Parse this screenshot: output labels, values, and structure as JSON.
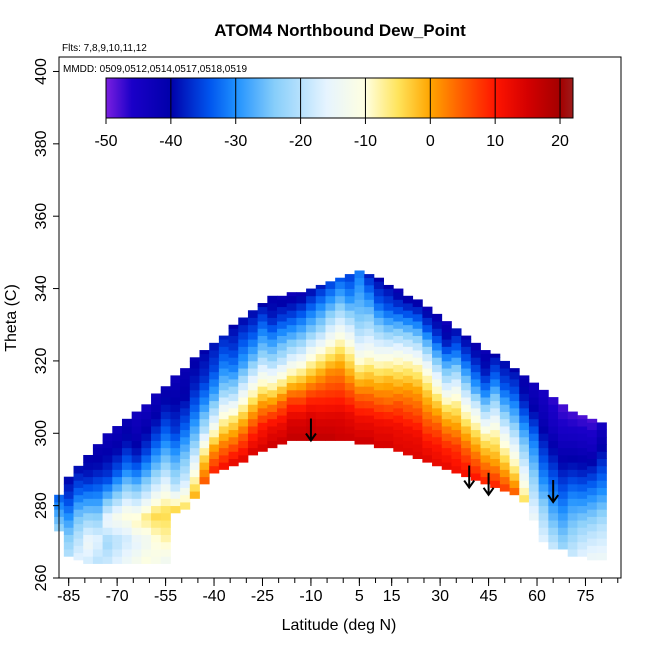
{
  "chart_data": {
    "type": "heatmap",
    "title": "ATOM4 Northbound Dew_Point",
    "flights_text": "Flts: 7,8,9,10,11,12",
    "dates_text": "MMDD: 0509,0512,0514,0517,0518,0519",
    "xlabel": "Latitude (deg N)",
    "ylabel": "Theta (C)",
    "xlim": [
      -88,
      86
    ],
    "ylim": [
      260,
      404
    ],
    "x_ticks": [
      -85,
      -70,
      -55,
      -40,
      -25,
      -10,
      5,
      15,
      30,
      45,
      60,
      75
    ],
    "x_tick_labels": [
      "-85",
      "-70",
      "-55",
      "-40",
      "-25",
      "-10",
      "5",
      "15",
      "30",
      "45",
      "60",
      "75"
    ],
    "y_ticks": [
      260,
      280,
      300,
      320,
      340,
      360,
      380,
      400
    ],
    "y_tick_labels": [
      "260",
      "280",
      "300",
      "320",
      "340",
      "360",
      "380",
      "400"
    ],
    "colorbar": {
      "min": -50,
      "max": 22,
      "ticks": [
        -50,
        -40,
        -30,
        -20,
        -10,
        0,
        10,
        20
      ],
      "tick_labels": [
        "-50",
        "-40",
        "-30",
        "-20",
        "-10",
        "0",
        "10",
        "20"
      ],
      "stops": [
        {
          "value": -50,
          "color": "#7B1FE0"
        },
        {
          "value": -46,
          "color": "#1A00C8"
        },
        {
          "value": -40,
          "color": "#0000AA"
        },
        {
          "value": -34,
          "color": "#0055EE"
        },
        {
          "value": -30,
          "color": "#1E90FF"
        },
        {
          "value": -24,
          "color": "#87CEFA"
        },
        {
          "value": -16,
          "color": "#E6F4FF"
        },
        {
          "value": -10,
          "color": "#FFFFE0"
        },
        {
          "value": -5,
          "color": "#FFE45C"
        },
        {
          "value": 0,
          "color": "#FFA500"
        },
        {
          "value": 5,
          "color": "#FF5A00"
        },
        {
          "value": 10,
          "color": "#FF1500"
        },
        {
          "value": 15,
          "color": "#D40000"
        },
        {
          "value": 20,
          "color": "#A40000"
        },
        {
          "value": 22,
          "color": "#9E1B1B"
        }
      ]
    },
    "field": {
      "lat_step": 3,
      "profiles": [
        {
          "lat": -88,
          "theta_min": 273,
          "theta_max": 283,
          "values": [
            -22,
            -28,
            -34
          ]
        },
        {
          "lat": -85,
          "theta_min": 266,
          "theta_max": 288,
          "values": [
            -20,
            -24,
            -30,
            -36,
            -40
          ]
        },
        {
          "lat": -82,
          "theta_min": 265,
          "theta_max": 291,
          "values": [
            -16,
            -20,
            -26,
            -34,
            -40
          ]
        },
        {
          "lat": -79,
          "theta_min": 264,
          "theta_max": 294,
          "values": [
            -18,
            -14,
            -22,
            -30,
            -38,
            -41
          ]
        },
        {
          "lat": -76,
          "theta_min": 264,
          "theta_max": 297,
          "values": [
            -20,
            -16,
            -24,
            -32,
            -39,
            -42
          ]
        },
        {
          "lat": -73,
          "theta_min": 264,
          "theta_max": 300,
          "values": [
            -18,
            -22,
            -14,
            -26,
            -36,
            -40,
            -43
          ]
        },
        {
          "lat": -70,
          "theta_min": 264,
          "theta_max": 302,
          "values": [
            -16,
            -20,
            -12,
            -24,
            -34,
            -40,
            -43
          ]
        },
        {
          "lat": -67,
          "theta_min": 264,
          "theta_max": 304,
          "values": [
            -14,
            -18,
            -10,
            -22,
            -32,
            -39,
            -42
          ]
        },
        {
          "lat": -64,
          "theta_min": 264,
          "theta_max": 306,
          "values": [
            -12,
            -16,
            -8,
            -20,
            -30,
            -38,
            -42,
            -44
          ]
        },
        {
          "lat": -61,
          "theta_min": 264,
          "theta_max": 308,
          "values": [
            -10,
            -14,
            -6,
            -18,
            -28,
            -36,
            -41,
            -44
          ]
        },
        {
          "lat": -58,
          "theta_min": 264,
          "theta_max": 311,
          "values": [
            -12,
            -10,
            -4,
            -16,
            -26,
            -34,
            -40,
            -43
          ]
        },
        {
          "lat": -55,
          "theta_min": 264,
          "theta_max": 313,
          "values": [
            -14,
            -8,
            -4,
            -14,
            -24,
            -32,
            -38,
            -42
          ]
        },
        {
          "lat": -52,
          "theta_min": 278,
          "theta_max": 316,
          "values": [
            -2,
            -20,
            -28,
            -36,
            -40,
            -43
          ]
        },
        {
          "lat": -49,
          "theta_min": 279,
          "theta_max": 318,
          "values": [
            -4,
            -18,
            -26,
            -34,
            -40,
            -42
          ]
        },
        {
          "lat": -46,
          "theta_min": 282,
          "theta_max": 321,
          "values": [
            0,
            -12,
            -24,
            -32,
            -38,
            -41
          ]
        },
        {
          "lat": -43,
          "theta_min": 286,
          "theta_max": 323,
          "values": [
            6,
            -4,
            -20,
            -30,
            -37,
            -40
          ]
        },
        {
          "lat": -40,
          "theta_min": 289,
          "theta_max": 325,
          "values": [
            10,
            0,
            -16,
            -28,
            -35,
            -39
          ]
        },
        {
          "lat": -37,
          "theta_min": 290,
          "theta_max": 327,
          "values": [
            12,
            2,
            -10,
            -24,
            -32,
            -38
          ]
        },
        {
          "lat": -34,
          "theta_min": 291,
          "theta_max": 330,
          "values": [
            14,
            4,
            -6,
            -20,
            -30,
            -36,
            -40
          ]
        },
        {
          "lat": -31,
          "theta_min": 292,
          "theta_max": 332,
          "values": [
            14,
            6,
            -4,
            -16,
            -28,
            -34,
            -40
          ]
        },
        {
          "lat": -28,
          "theta_min": 294,
          "theta_max": 334,
          "values": [
            15,
            8,
            -2,
            -14,
            -26,
            -34,
            -40
          ]
        },
        {
          "lat": -25,
          "theta_min": 295,
          "theta_max": 336,
          "values": [
            15,
            10,
            0,
            -12,
            -24,
            -32,
            -40
          ]
        },
        {
          "lat": -22,
          "theta_min": 296,
          "theta_max": 338,
          "values": [
            16,
            12,
            2,
            -10,
            -22,
            -30,
            -38,
            -41
          ]
        },
        {
          "lat": -19,
          "theta_min": 297,
          "theta_max": 338,
          "values": [
            16,
            12,
            4,
            -8,
            -20,
            -28,
            -36,
            -42
          ]
        },
        {
          "lat": -16,
          "theta_min": 298,
          "theta_max": 339,
          "values": [
            17,
            14,
            6,
            -6,
            -18,
            -28,
            -36,
            -43
          ]
        },
        {
          "lat": -13,
          "theta_min": 298,
          "theta_max": 339,
          "values": [
            17,
            14,
            6,
            -4,
            -16,
            -26,
            -34,
            -42
          ]
        },
        {
          "lat": -10,
          "theta_min": 298,
          "theta_max": 340,
          "values": [
            17,
            15,
            8,
            -2,
            -12,
            -24,
            -32,
            -40
          ]
        },
        {
          "lat": -7,
          "theta_min": 298,
          "theta_max": 341,
          "values": [
            17,
            14,
            8,
            0,
            -10,
            -22,
            -30,
            -38
          ]
        },
        {
          "lat": -4,
          "theta_min": 298,
          "theta_max": 342,
          "values": [
            17,
            14,
            8,
            2,
            -8,
            -18,
            -28,
            -36
          ]
        },
        {
          "lat": -1,
          "theta_min": 298,
          "theta_max": 343,
          "values": [
            16,
            14,
            8,
            2,
            -6,
            -16,
            -26,
            -34
          ]
        },
        {
          "lat": 2,
          "theta_min": 298,
          "theta_max": 344,
          "values": [
            16,
            13,
            6,
            -2,
            -10,
            -20,
            -30,
            -36
          ]
        },
        {
          "lat": 5,
          "theta_min": 297,
          "theta_max": 345,
          "values": [
            16,
            12,
            4,
            -6,
            -16,
            -24,
            -28,
            -32
          ]
        },
        {
          "lat": 8,
          "theta_min": 297,
          "theta_max": 344,
          "values": [
            16,
            12,
            4,
            -4,
            -14,
            -22,
            -30,
            -38
          ]
        },
        {
          "lat": 11,
          "theta_min": 296,
          "theta_max": 343,
          "values": [
            15,
            12,
            4,
            -4,
            -14,
            -24,
            -34,
            -40
          ]
        },
        {
          "lat": 14,
          "theta_min": 296,
          "theta_max": 341,
          "values": [
            15,
            12,
            4,
            -2,
            -12,
            -24,
            -34,
            -40
          ]
        },
        {
          "lat": 17,
          "theta_min": 295,
          "theta_max": 340,
          "values": [
            14,
            12,
            6,
            -2,
            -10,
            -22,
            -34,
            -42
          ]
        },
        {
          "lat": 20,
          "theta_min": 294,
          "theta_max": 338,
          "values": [
            14,
            12,
            6,
            0,
            -8,
            -20,
            -32,
            -42
          ]
        },
        {
          "lat": 23,
          "theta_min": 293,
          "theta_max": 337,
          "values": [
            14,
            12,
            6,
            0,
            -8,
            -20,
            -32,
            -42
          ]
        },
        {
          "lat": 26,
          "theta_min": 292,
          "theta_max": 335,
          "values": [
            14,
            10,
            4,
            -2,
            -10,
            -22,
            -34,
            -42
          ]
        },
        {
          "lat": 29,
          "theta_min": 291,
          "theta_max": 333,
          "values": [
            13,
            10,
            4,
            -4,
            -14,
            -26,
            -36,
            -42
          ]
        },
        {
          "lat": 32,
          "theta_min": 290,
          "theta_max": 331,
          "values": [
            13,
            9,
            2,
            -6,
            -18,
            -28,
            -38,
            -43
          ]
        },
        {
          "lat": 35,
          "theta_min": 289,
          "theta_max": 329,
          "values": [
            12,
            8,
            0,
            -8,
            -20,
            -32,
            -40
          ]
        },
        {
          "lat": 38,
          "theta_min": 288,
          "theta_max": 327,
          "values": [
            12,
            6,
            -2,
            -12,
            -24,
            -34,
            -41
          ]
        },
        {
          "lat": 41,
          "theta_min": 287,
          "theta_max": 325,
          "values": [
            11,
            4,
            -4,
            -14,
            -28,
            -36,
            -42
          ]
        },
        {
          "lat": 44,
          "theta_min": 286,
          "theta_max": 323,
          "values": [
            10,
            2,
            -6,
            -18,
            -30,
            -38,
            -42
          ]
        },
        {
          "lat": 47,
          "theta_min": 285,
          "theta_max": 322,
          "values": [
            10,
            0,
            -8,
            -20,
            -32,
            -40
          ]
        },
        {
          "lat": 50,
          "theta_min": 284,
          "theta_max": 320,
          "values": [
            8,
            -2,
            -12,
            -24,
            -34,
            -40
          ]
        },
        {
          "lat": 53,
          "theta_min": 283,
          "theta_max": 318,
          "values": [
            6,
            -6,
            -16,
            -26,
            -34,
            -40
          ]
        },
        {
          "lat": 56,
          "theta_min": 281,
          "theta_max": 316,
          "values": [
            -4,
            -14,
            -22,
            -30,
            -38,
            -42
          ]
        },
        {
          "lat": 59,
          "theta_min": 276,
          "theta_max": 314,
          "values": [
            -14,
            -20,
            -26,
            -32,
            -40,
            -44
          ]
        },
        {
          "lat": 62,
          "theta_min": 270,
          "theta_max": 312,
          "values": [
            -16,
            -22,
            -30,
            -36,
            -42,
            -45
          ]
        },
        {
          "lat": 65,
          "theta_min": 268,
          "theta_max": 310,
          "values": [
            -18,
            -26,
            -32,
            -38,
            -44,
            -47
          ]
        },
        {
          "lat": 68,
          "theta_min": 268,
          "theta_max": 308,
          "values": [
            -22,
            -28,
            -34,
            -40,
            -45,
            -48
          ]
        },
        {
          "lat": 71,
          "theta_min": 266,
          "theta_max": 306,
          "values": [
            -18,
            -24,
            -30,
            -38,
            -44,
            -48
          ]
        },
        {
          "lat": 74,
          "theta_min": 266,
          "theta_max": 305,
          "values": [
            -16,
            -22,
            -30,
            -38,
            -44,
            -48
          ]
        },
        {
          "lat": 77,
          "theta_min": 265,
          "theta_max": 304,
          "values": [
            -14,
            -20,
            -28,
            -36,
            -44,
            -48
          ]
        },
        {
          "lat": 80,
          "theta_min": 265,
          "theta_max": 303,
          "values": [
            -14,
            -20,
            -30,
            -38,
            -45
          ]
        }
      ]
    },
    "markers": [
      {
        "lat": -10,
        "theta": 298
      },
      {
        "lat": 39,
        "theta": 285
      },
      {
        "lat": 45,
        "theta": 283
      },
      {
        "lat": 65,
        "theta": 281
      }
    ]
  }
}
